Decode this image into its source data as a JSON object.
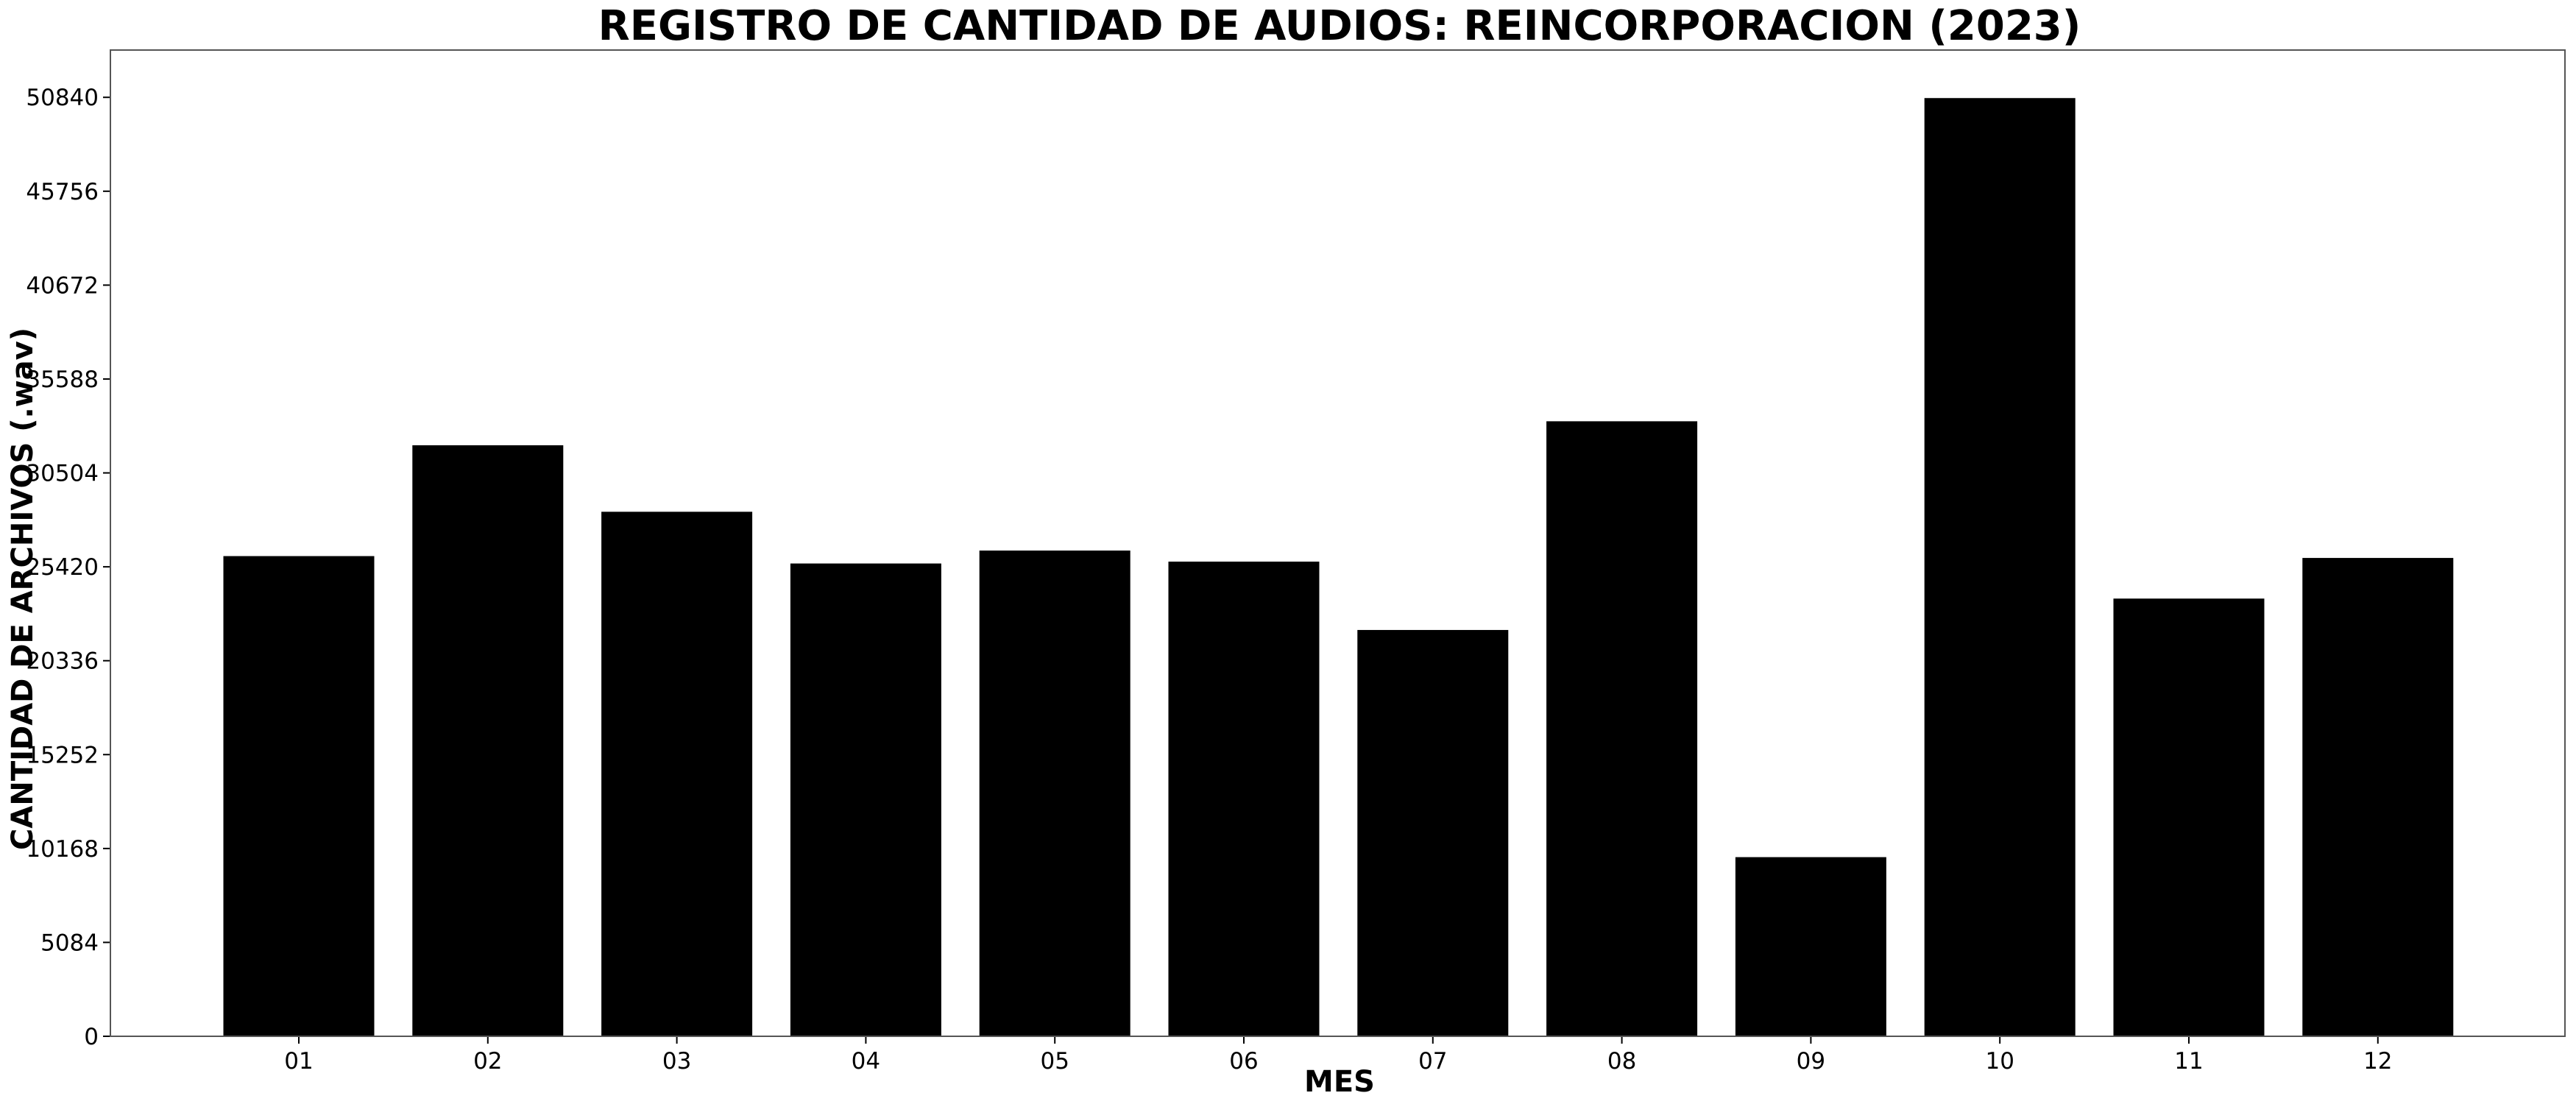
{
  "chart_data": {
    "type": "bar",
    "title": "REGISTRO DE CANTIDAD DE AUDIOS: REINCORPORACION (2023)",
    "xlabel": "MES",
    "ylabel": "CANTIDAD DE ARCHIVOS (.wav)",
    "categories": [
      "01",
      "02",
      "03",
      "04",
      "05",
      "06",
      "07",
      "08",
      "09",
      "10",
      "11",
      "12"
    ],
    "values": [
      26000,
      32000,
      28400,
      25600,
      26300,
      25700,
      22000,
      33300,
      9700,
      50800,
      23700,
      25900
    ],
    "ylim": [
      0,
      53400
    ],
    "yticks": [
      0,
      5084,
      10168,
      15252,
      20336,
      25420,
      30504,
      35588,
      40672,
      45756,
      50840
    ],
    "grid": false,
    "legend": "none",
    "bar_color": "#000000"
  }
}
